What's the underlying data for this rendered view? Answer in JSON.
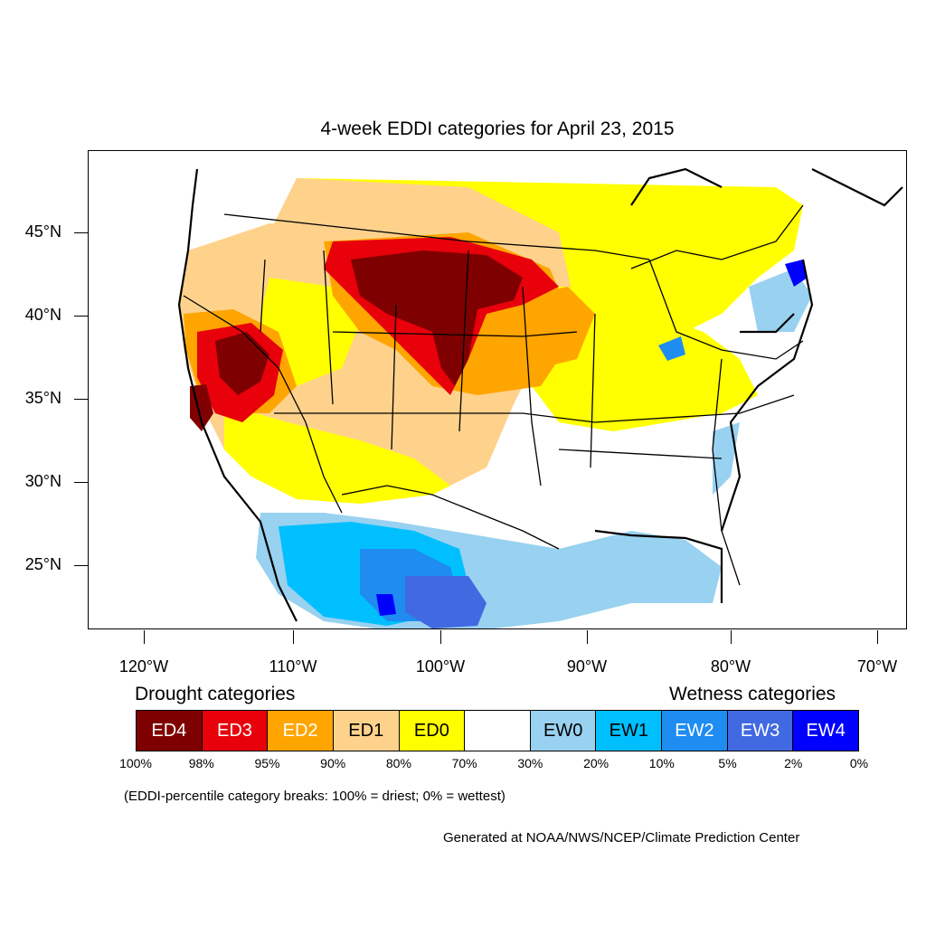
{
  "title": "4-week EDDI categories for April 23, 2015",
  "lat_labels": [
    "45°N",
    "40°N",
    "35°N",
    "30°N",
    "25°N"
  ],
  "lon_labels": [
    "120°W",
    "110°W",
    "100°W",
    "90°W",
    "80°W",
    "70°W"
  ],
  "legend": {
    "drought_heading": "Drought categories",
    "wetness_heading": "Wetness categories",
    "categories": [
      {
        "label": "ED4",
        "color": "#7f0000",
        "text_color": "#ffffff"
      },
      {
        "label": "ED3",
        "color": "#e8000b",
        "text_color": "#ffffff"
      },
      {
        "label": "ED2",
        "color": "#ffa500",
        "text_color": "#ffffff"
      },
      {
        "label": "ED1",
        "color": "#ffd28c",
        "text_color": "#000000"
      },
      {
        "label": "ED0",
        "color": "#ffff00",
        "text_color": "#000000"
      },
      {
        "label": "",
        "color": "#ffffff",
        "text_color": "#000000"
      },
      {
        "label": "EW0",
        "color": "#99d1f0",
        "text_color": "#000000"
      },
      {
        "label": "EW1",
        "color": "#00bfff",
        "text_color": "#000000"
      },
      {
        "label": "EW2",
        "color": "#1e8cf0",
        "text_color": "#ffffff"
      },
      {
        "label": "EW3",
        "color": "#4169e1",
        "text_color": "#ffffff"
      },
      {
        "label": "EW4",
        "color": "#0000ff",
        "text_color": "#ffffff"
      }
    ],
    "percentiles": [
      "100%",
      "98%",
      "95%",
      "90%",
      "80%",
      "70%",
      "30%",
      "20%",
      "10%",
      "5%",
      "2%",
      "0%"
    ]
  },
  "note": "(EDDI-percentile category breaks: 100% = driest; 0% = wettest)",
  "credit": "Generated at NOAA/NWS/NCEP/Climate Prediction Center"
}
